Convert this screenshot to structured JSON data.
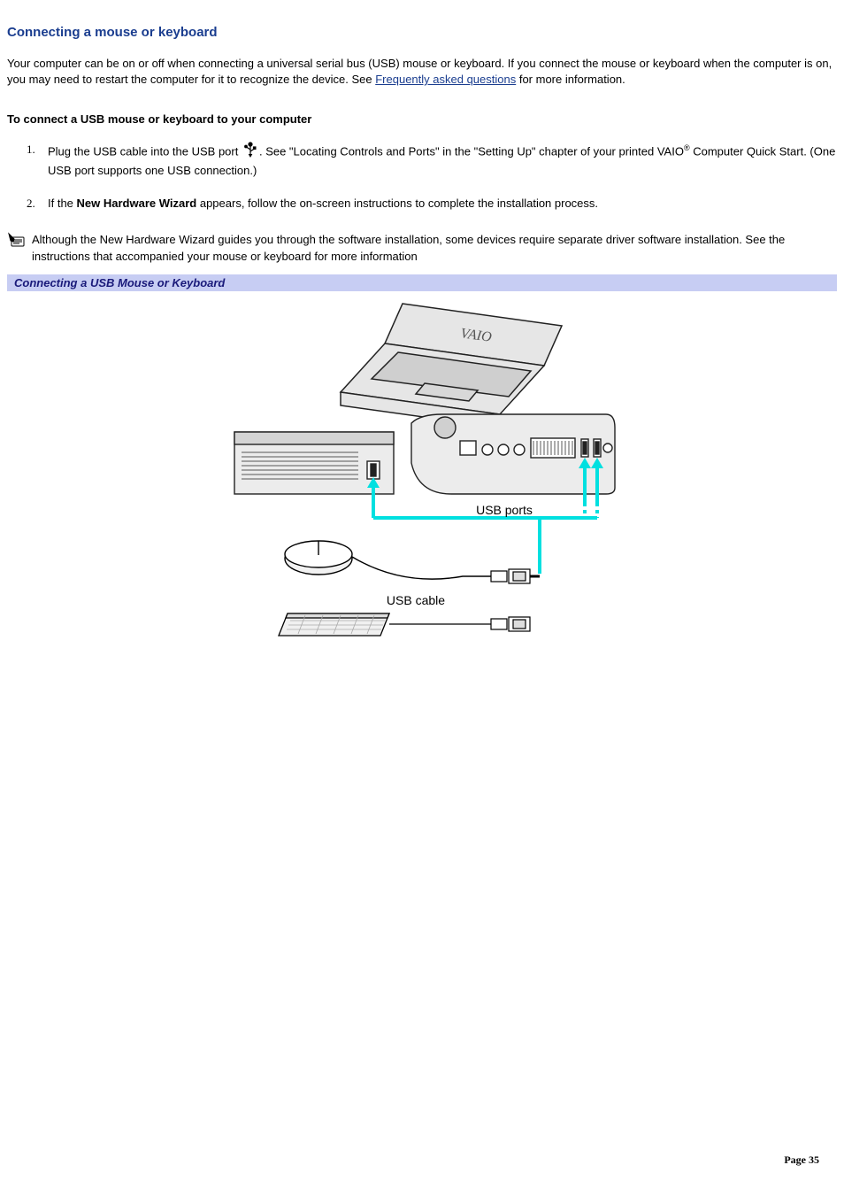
{
  "heading": "Connecting a mouse or keyboard",
  "intro_before_link": "Your computer can be on or off when connecting a universal serial bus (USB) mouse or keyboard. If you connect the mouse or keyboard when the computer is on, you may need to restart the computer for it to recognize the device. See ",
  "faq_link_text": "Frequently asked questions",
  "intro_after_link": " for more information.",
  "sub_heading": "To connect a USB mouse or keyboard to your computer",
  "step1_a": "Plug the USB cable into the USB port ",
  "step1_b": ". See \"Locating Controls and Ports\" in the \"Setting Up\" chapter of your printed VAIO",
  "step1_reg": "®",
  "step1_c": " Computer Quick Start. (One USB port supports one USB connection.)",
  "step2_a": "If the ",
  "step2_bold": "New Hardware Wizard",
  "step2_b": " appears, follow the on-screen instructions to complete the installation process.",
  "note_text": "Although the New Hardware Wizard guides you through the software installation, some devices require separate driver software installation. See the instructions that accompanied your mouse or keyboard for more information",
  "figure_caption": "Connecting a USB Mouse or Keyboard",
  "diagram": {
    "label_usb_ports": "USB ports",
    "label_usb_cable": "USB cable",
    "highlight_color": "#00e0e0",
    "line_color": "#000000",
    "panel_fill": "#e6e6e6",
    "panel_stroke": "#222222"
  },
  "page_number": "Page 35",
  "colors": {
    "heading": "#1a3d8f",
    "link": "#1a3d8f",
    "caption_bg": "#c7cdf3",
    "caption_text": "#1a1a7a"
  },
  "page_num_top": 1303
}
